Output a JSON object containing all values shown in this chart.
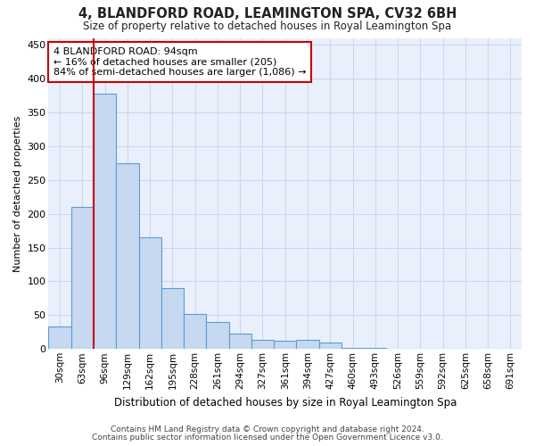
{
  "title": "4, BLANDFORD ROAD, LEAMINGTON SPA, CV32 6BH",
  "subtitle": "Size of property relative to detached houses in Royal Leamington Spa",
  "xlabel": "Distribution of detached houses by size in Royal Leamington Spa",
  "ylabel": "Number of detached properties",
  "footnote1": "Contains HM Land Registry data © Crown copyright and database right 2024.",
  "footnote2": "Contains public sector information licensed under the Open Government Licence v3.0.",
  "bar_labels": [
    "30sqm",
    "63sqm",
    "96sqm",
    "129sqm",
    "162sqm",
    "195sqm",
    "228sqm",
    "261sqm",
    "294sqm",
    "327sqm",
    "361sqm",
    "394sqm",
    "427sqm",
    "460sqm",
    "493sqm",
    "526sqm",
    "559sqm",
    "592sqm",
    "625sqm",
    "658sqm",
    "691sqm"
  ],
  "bar_values": [
    33,
    210,
    378,
    275,
    165,
    90,
    52,
    40,
    23,
    13,
    12,
    13,
    10,
    2,
    2,
    0,
    0,
    0,
    0,
    0,
    0
  ],
  "bar_color": "#c6d9f0",
  "bar_edge_color": "#5b9bd5",
  "bg_color": "#ffffff",
  "plot_bg_color": "#eaf0fb",
  "grid_color": "#c8d8f0",
  "property_line_color": "#cc0000",
  "annotation_text": "4 BLANDFORD ROAD: 94sqm\n← 16% of detached houses are smaller (205)\n84% of semi-detached houses are larger (1,086) →",
  "annotation_box_color": "#ffffff",
  "annotation_box_edge": "#cc0000",
  "ylim": [
    0,
    460
  ],
  "yticks": [
    0,
    50,
    100,
    150,
    200,
    250,
    300,
    350,
    400,
    450
  ]
}
